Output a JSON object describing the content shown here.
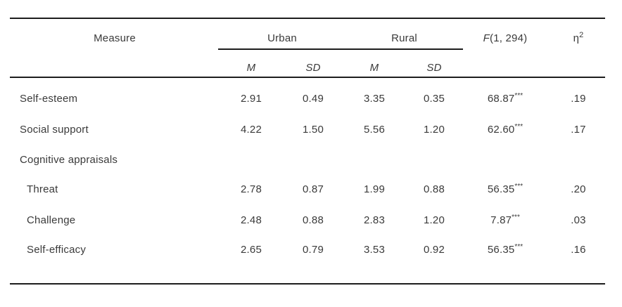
{
  "table": {
    "columns": {
      "measure": "Measure",
      "urban": "Urban",
      "rural": "Rural",
      "f_italic": "F",
      "f_rest": "(1, 294)",
      "eta_symbol": "η",
      "eta_sup": "2",
      "m": "M",
      "sd": "SD"
    },
    "rows": [
      {
        "label": "Self-esteem",
        "urban_m": "2.91",
        "urban_sd": "0.49",
        "rural_m": "3.35",
        "rural_sd": "0.35",
        "f": "68.87",
        "sig": "***",
        "eta": ".19"
      },
      {
        "label": "Social support",
        "urban_m": "4.22",
        "urban_sd": "1.50",
        "rural_m": "5.56",
        "rural_sd": "1.20",
        "f": "62.60",
        "sig": "***",
        "eta": ".17"
      },
      {
        "label": "Cognitive appraisals",
        "urban_m": "",
        "urban_sd": "",
        "rural_m": "",
        "rural_sd": "",
        "f": "",
        "sig": "",
        "eta": ""
      },
      {
        "label": "Threat",
        "urban_m": "2.78",
        "urban_sd": "0.87",
        "rural_m": "1.99",
        "rural_sd": "0.88",
        "f": "56.35",
        "sig": "***",
        "eta": ".20"
      },
      {
        "label": "Challenge",
        "urban_m": "2.48",
        "urban_sd": "0.88",
        "rural_m": "2.83",
        "rural_sd": "1.20",
        "f": "7.87",
        "sig": "***",
        "eta": ".03"
      },
      {
        "label": "Self-efficacy",
        "urban_m": "2.65",
        "urban_sd": "0.79",
        "rural_m": "3.53",
        "rural_sd": "0.92",
        "f": "56.35",
        "sig": "***",
        "eta": ".16"
      }
    ]
  },
  "colors": {
    "text": "#3a3a3a",
    "rule": "#1d1d1d",
    "background": "#ffffff"
  }
}
